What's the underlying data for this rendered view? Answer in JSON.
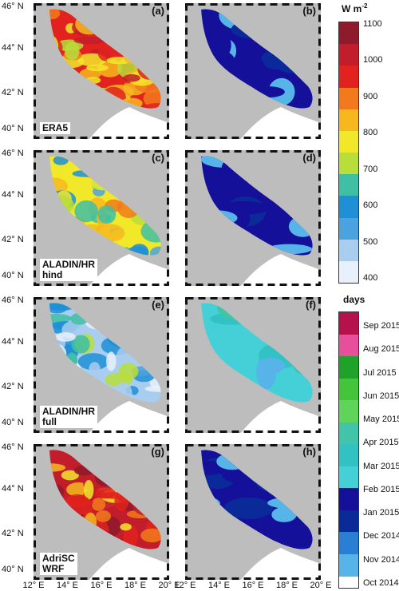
{
  "latitude_labels": [
    "46° N",
    "44° N",
    "42° N",
    "40° N"
  ],
  "longitude_labels": [
    "12° E",
    "14° E",
    "16° E",
    "18° E",
    "20° E"
  ],
  "panels": [
    {
      "id": "a",
      "label": "(a)",
      "text": "ERA5"
    },
    {
      "id": "b",
      "label": "(b)",
      "text": ""
    },
    {
      "id": "c",
      "label": "(c)",
      "text": ""
    },
    {
      "id": "d",
      "label": "(d)",
      "text": ""
    },
    {
      "id": "e",
      "label": "(e)",
      "text": ""
    },
    {
      "id": "f",
      "label": "(f)",
      "text": ""
    },
    {
      "id": "g",
      "label": "(g)",
      "text": ""
    },
    {
      "id": "h",
      "label": "(h)",
      "text": ""
    }
  ],
  "panel_text": {
    "a": [
      "ERA5"
    ],
    "c": [
      "ALADIN/HR",
      "hind"
    ],
    "e": [
      "ALADIN/HR",
      "full"
    ],
    "g": [
      "AdriSC",
      "WRF"
    ]
  },
  "colorbar_power": {
    "title": "W m",
    "title_sup": "-2",
    "ticks": [
      "1100",
      "1000",
      "900",
      "800",
      "700",
      "600",
      "500",
      "400"
    ],
    "range": [
      400,
      1100
    ]
  },
  "colorbar_days": {
    "title": "days",
    "ticks": [
      "Sep 2015",
      "Aug 2015",
      "Jul 2015",
      "Jun 2015",
      "May 2015",
      "Apr 2015",
      "Mar 2015",
      "Feb 2015",
      "Jan 2015",
      "Dec 2014",
      "Nov 2014",
      "Oct 2014"
    ]
  },
  "colors": {
    "land": "#bdbdbd",
    "sea": "#ffffff",
    "power_scale": [
      "#e8f0fb",
      "#a9cdee",
      "#4aa3df",
      "#1f8fd6",
      "#3fbfa3",
      "#b9dd3a",
      "#f2e82a",
      "#f7b81f",
      "#f27a1c",
      "#e1221f",
      "#c21d2a",
      "#8e1a2c"
    ],
    "days_scale": [
      "#56b4e9",
      "#2a7fd4",
      "#0a2a9a",
      "#14109a",
      "#45d0d8",
      "#33c2c4",
      "#41c4a8",
      "#5fd35a",
      "#44c43a",
      "#1fa22a",
      "#e84f9a",
      "#b5124d"
    ]
  }
}
